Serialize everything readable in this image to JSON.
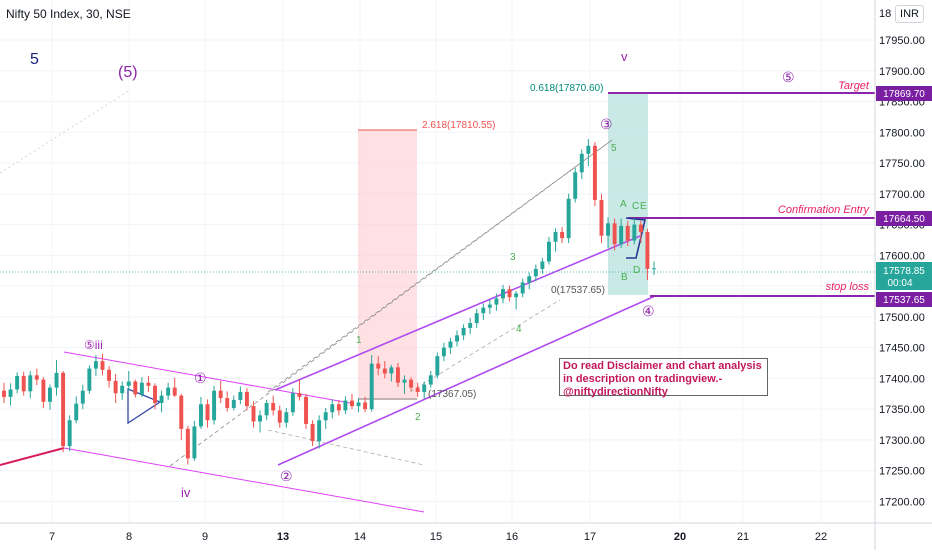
{
  "header": {
    "title": "Nifty 50 Index, 30, NSE",
    "currency": "INR"
  },
  "colors": {
    "up": "#26a69a",
    "down": "#ef5350",
    "purple": "#9c27b0",
    "violet": "#8e24aa",
    "pink_label": "#e91e63",
    "green_label": "#4caf50",
    "teal_box": "#b2dfdb",
    "red_box": "#ffcdd2",
    "price_tag": "#7b1fa2",
    "last_tag": "#26a69a"
  },
  "chart_data": {
    "type": "candlestick",
    "symbol": "Nifty 50 Index",
    "interval": "30",
    "exchange": "NSE",
    "y_ticks": [
      17200,
      17250,
      17300,
      17350,
      17400,
      17450,
      17500,
      17550,
      17600,
      17650,
      17700,
      17750,
      17800,
      17850,
      17900,
      17950
    ],
    "y_top_partial": "18",
    "ylim": [
      17165,
      18015
    ],
    "x_ticks": [
      "7",
      "8",
      "9",
      "13",
      "14",
      "15",
      "16",
      "17",
      "20",
      "21",
      "22"
    ],
    "x_bold_ticks": [
      "13",
      "20"
    ],
    "last_price": "17578.85",
    "countdown": "00:04",
    "price_levels": [
      {
        "label": "Target",
        "price": "17869.70"
      },
      {
        "label": "Confirmation Entry",
        "price": "17664.50"
      },
      {
        "label": "stop loss",
        "price": "17537.65"
      }
    ],
    "fib_labels": {
      "teal": "0.618(17870.60)",
      "teal_base": "0(17537.65)",
      "red": "2.618(17810.55)",
      "red_base": "(17367.05)"
    },
    "wave_labels": {
      "big_5": "5",
      "paren_5": "(5)",
      "v": "v",
      "iii": "⑤iii",
      "iv": "iv",
      "c1": "①",
      "c2": "②",
      "c3": "③",
      "c4": "④",
      "c5": "⑤",
      "sub": [
        "1",
        "2",
        "3",
        "4",
        "5"
      ],
      "abcde": [
        "A",
        "B",
        "C",
        "D",
        "E"
      ]
    },
    "note": "Do read Disclaimer and chart analysis in description on tradingview.-\n@niftydirectionNifty",
    "ohlc": [
      [
        17380,
        17393,
        17360,
        17370
      ],
      [
        17370,
        17392,
        17356,
        17382
      ],
      [
        17382,
        17410,
        17376,
        17404
      ],
      [
        17404,
        17411,
        17372,
        17379
      ],
      [
        17379,
        17412,
        17368,
        17405
      ],
      [
        17405,
        17416,
        17389,
        17398
      ],
      [
        17398,
        17402,
        17352,
        17362
      ],
      [
        17362,
        17390,
        17349,
        17385
      ],
      [
        17385,
        17430,
        17372,
        17409
      ],
      [
        17409,
        17412,
        17280,
        17290
      ],
      [
        17290,
        17340,
        17282,
        17332
      ],
      [
        17332,
        17371,
        17327,
        17359
      ],
      [
        17359,
        17390,
        17350,
        17380
      ],
      [
        17380,
        17421,
        17375,
        17416
      ],
      [
        17416,
        17438,
        17404,
        17428
      ],
      [
        17428,
        17440,
        17405,
        17414
      ],
      [
        17414,
        17420,
        17385,
        17396
      ],
      [
        17396,
        17407,
        17360,
        17376
      ],
      [
        17376,
        17395,
        17365,
        17388
      ],
      [
        17388,
        17412,
        17380,
        17395
      ],
      [
        17395,
        17398,
        17369,
        17374
      ],
      [
        17374,
        17402,
        17370,
        17393
      ],
      [
        17393,
        17404,
        17378,
        17388
      ],
      [
        17388,
        17392,
        17350,
        17360
      ],
      [
        17360,
        17380,
        17345,
        17372
      ],
      [
        17372,
        17393,
        17365,
        17385
      ],
      [
        17385,
        17401,
        17370,
        17372
      ],
      [
        17372,
        17375,
        17300,
        17318
      ],
      [
        17318,
        17323,
        17260,
        17270
      ],
      [
        17270,
        17331,
        17266,
        17322
      ],
      [
        17322,
        17370,
        17318,
        17358
      ],
      [
        17358,
        17366,
        17320,
        17332
      ],
      [
        17332,
        17388,
        17325,
        17380
      ],
      [
        17380,
        17396,
        17360,
        17368
      ],
      [
        17368,
        17379,
        17346,
        17352
      ],
      [
        17352,
        17372,
        17348,
        17365
      ],
      [
        17365,
        17387,
        17358,
        17378
      ],
      [
        17378,
        17384,
        17348,
        17355
      ],
      [
        17355,
        17363,
        17320,
        17330
      ],
      [
        17330,
        17348,
        17312,
        17340
      ],
      [
        17340,
        17365,
        17332,
        17360
      ],
      [
        17360,
        17372,
        17340,
        17348
      ],
      [
        17348,
        17356,
        17320,
        17328
      ],
      [
        17328,
        17352,
        17320,
        17345
      ],
      [
        17345,
        17384,
        17339,
        17376
      ],
      [
        17376,
        17398,
        17364,
        17370
      ],
      [
        17370,
        17375,
        17318,
        17326
      ],
      [
        17326,
        17332,
        17290,
        17298
      ],
      [
        17298,
        17340,
        17286,
        17332
      ],
      [
        17332,
        17352,
        17318,
        17345
      ],
      [
        17345,
        17366,
        17335,
        17358
      ],
      [
        17358,
        17365,
        17340,
        17348
      ],
      [
        17348,
        17371,
        17342,
        17364
      ],
      [
        17364,
        17375,
        17350,
        17355
      ],
      [
        17355,
        17368,
        17345,
        17361
      ],
      [
        17361,
        17370,
        17345,
        17350
      ],
      [
        17350,
        17438,
        17346,
        17424
      ],
      [
        17424,
        17436,
        17405,
        17416
      ],
      [
        17416,
        17428,
        17400,
        17408
      ],
      [
        17408,
        17422,
        17395,
        17418
      ],
      [
        17418,
        17425,
        17386,
        17393
      ],
      [
        17393,
        17405,
        17375,
        17398
      ],
      [
        17398,
        17402,
        17380,
        17385
      ],
      [
        17385,
        17393,
        17370,
        17378
      ],
      [
        17378,
        17395,
        17367,
        17390
      ],
      [
        17390,
        17412,
        17385,
        17405
      ],
      [
        17405,
        17442,
        17400,
        17436
      ],
      [
        17436,
        17458,
        17428,
        17450
      ],
      [
        17450,
        17466,
        17440,
        17460
      ],
      [
        17460,
        17478,
        17452,
        17470
      ],
      [
        17470,
        17488,
        17462,
        17482
      ],
      [
        17482,
        17498,
        17472,
        17490
      ],
      [
        17490,
        17513,
        17482,
        17506
      ],
      [
        17506,
        17522,
        17495,
        17515
      ],
      [
        17515,
        17528,
        17505,
        17520
      ],
      [
        17520,
        17538,
        17510,
        17530
      ],
      [
        17530,
        17552,
        17522,
        17545
      ],
      [
        17545,
        17551,
        17525,
        17532
      ],
      [
        17532,
        17542,
        17512,
        17538
      ],
      [
        17538,
        17562,
        17532,
        17556
      ],
      [
        17556,
        17572,
        17545,
        17566
      ],
      [
        17566,
        17585,
        17558,
        17578
      ],
      [
        17578,
        17596,
        17570,
        17590
      ],
      [
        17590,
        17630,
        17585,
        17622
      ],
      [
        17622,
        17644,
        17606,
        17638
      ],
      [
        17638,
        17646,
        17620,
        17628
      ],
      [
        17628,
        17700,
        17620,
        17692
      ],
      [
        17692,
        17742,
        17686,
        17735
      ],
      [
        17735,
        17772,
        17724,
        17765
      ],
      [
        17765,
        17789,
        17745,
        17778
      ],
      [
        17778,
        17784,
        17680,
        17690
      ],
      [
        17690,
        17700,
        17620,
        17632
      ],
      [
        17632,
        17662,
        17612,
        17652
      ],
      [
        17652,
        17660,
        17608,
        17618
      ],
      [
        17618,
        17660,
        17612,
        17648
      ],
      [
        17648,
        17656,
        17615,
        17624
      ],
      [
        17624,
        17660,
        17618,
        17650
      ],
      [
        17650,
        17656,
        17620,
        17638
      ],
      [
        17638,
        17643,
        17560,
        17578
      ],
      [
        17578,
        17590,
        17568,
        17579
      ]
    ]
  }
}
